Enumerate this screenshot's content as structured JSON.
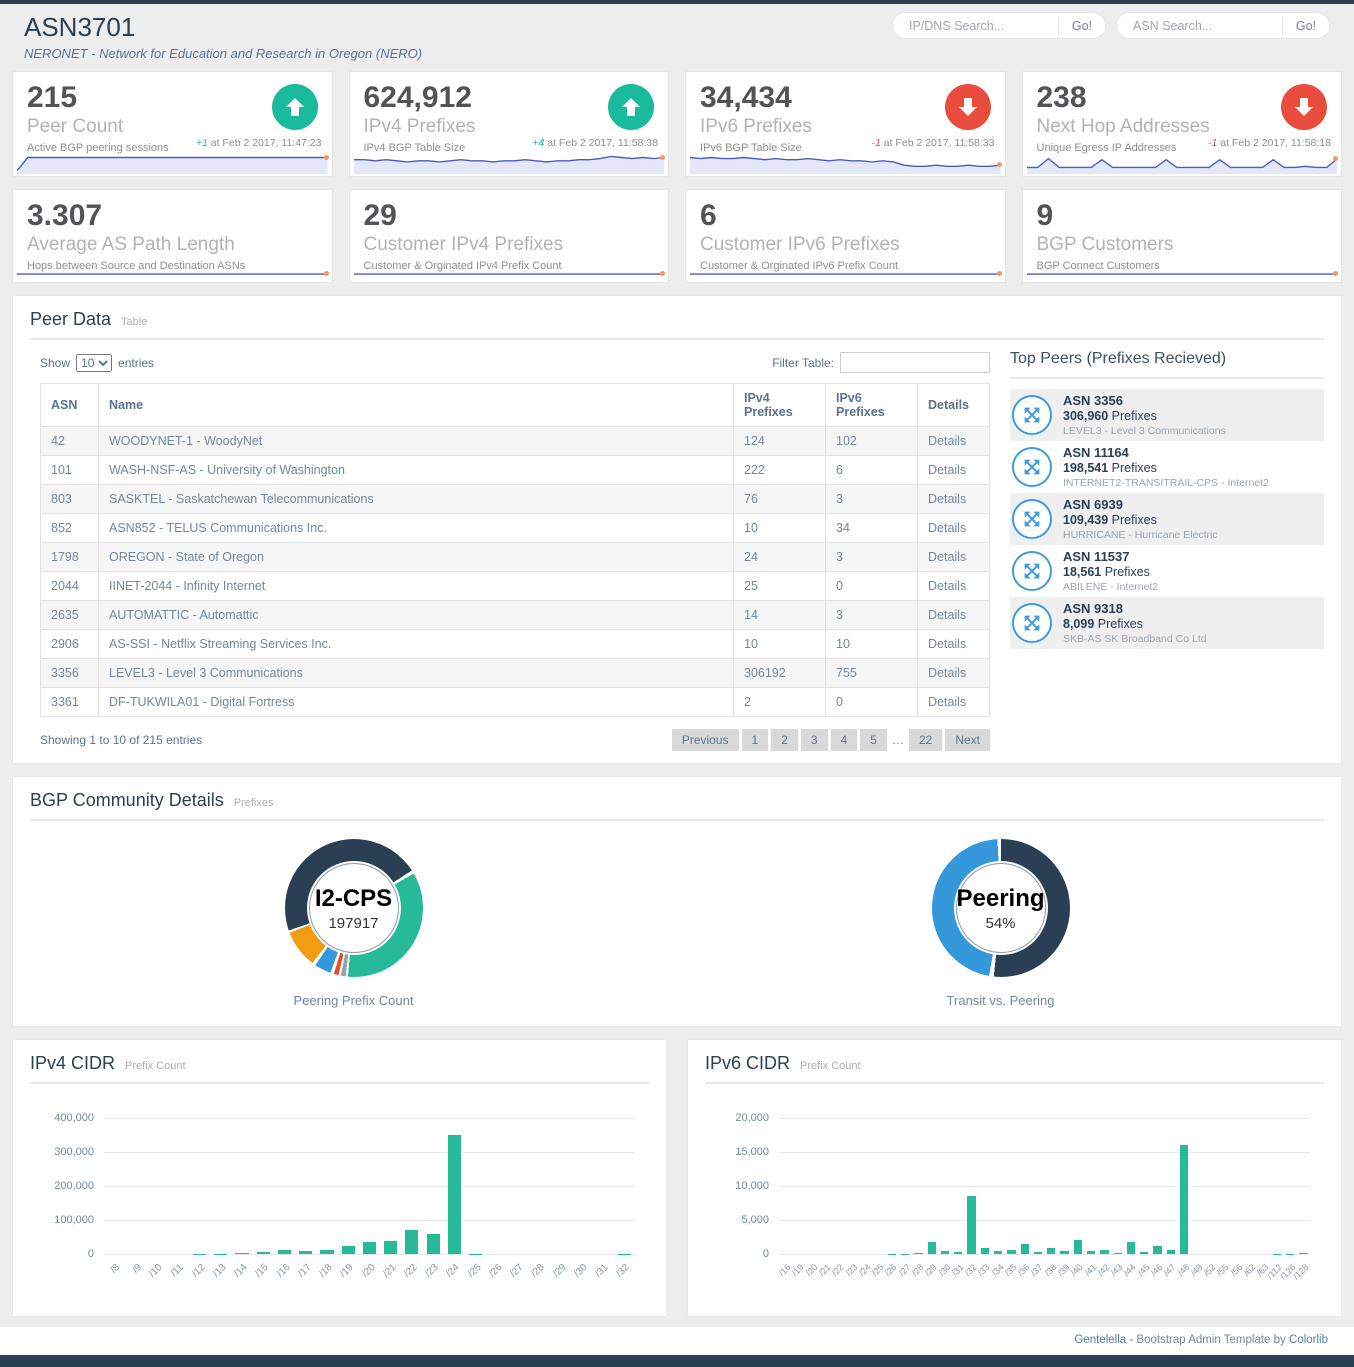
{
  "header": {
    "title": "ASN3701",
    "subtitle": "NERONET - Network for Education and Research in Oregon (NERO)",
    "ip_dns_search": {
      "placeholder": "IP/DNS Search...",
      "button": "Go!"
    },
    "asn_search": {
      "placeholder": "ASN Search...",
      "button": "Go!"
    }
  },
  "colors": {
    "navy": "#2A3F54",
    "accent_green": "#1ABB9C",
    "accent_red": "#E74C3C",
    "bar_green": "#26B99A",
    "icon_blue": "#3E9BDC",
    "spark_line": "#4A5BC5",
    "spark_fill": "#E3E7F7",
    "spark_dot": "#F39B5B"
  },
  "tiles_row1": [
    {
      "value": "215",
      "title": "Peer Count",
      "desc": "Active BGP peering sessions",
      "dir": "up",
      "delta": "+1",
      "when": "at Feb 2 2017, 11:47:23",
      "spark": [
        3,
        15,
        15,
        15,
        15,
        15,
        15,
        15,
        15,
        15,
        15,
        15,
        15,
        15,
        15,
        15,
        15,
        15,
        15,
        15,
        15,
        15,
        15,
        15,
        15,
        15,
        15,
        15,
        15,
        15
      ]
    },
    {
      "value": "624,912",
      "title": "IPv4 Prefixes",
      "desc": "IPv4 BGP Table Size",
      "dir": "up",
      "delta": "+4",
      "when": "at Feb 2 2017, 11:58:38",
      "spark": [
        13,
        13,
        12,
        13,
        12,
        11,
        12,
        12,
        11,
        12,
        13,
        12,
        12,
        11,
        12,
        12,
        13,
        12,
        11,
        12,
        12,
        13,
        13,
        14,
        16,
        15,
        14,
        15,
        14,
        15
      ]
    },
    {
      "value": "34,434",
      "title": "IPv6 Prefixes",
      "desc": "IPv6 BGP Table Size",
      "dir": "down",
      "delta": "-1",
      "when": "at Feb 2 2017, 11:58:33",
      "spark": [
        15,
        14,
        15,
        14,
        14,
        15,
        14,
        13,
        14,
        13,
        13,
        14,
        13,
        12,
        13,
        12,
        12,
        11,
        12,
        11,
        8,
        7,
        7,
        8,
        7,
        7,
        8,
        7,
        7,
        8
      ]
    },
    {
      "value": "238",
      "title": "Next Hop Addresses",
      "desc": "Unique Egress IP Addresses",
      "dir": "down",
      "delta": "-1",
      "when": "at Feb 2 2017, 11:58:18",
      "spark": [
        6,
        6,
        14,
        6,
        6,
        6,
        6,
        13,
        6,
        6,
        6,
        6,
        6,
        13,
        6,
        6,
        6,
        6,
        13,
        6,
        6,
        6,
        6,
        13,
        6,
        6,
        7,
        6,
        6,
        14
      ]
    }
  ],
  "tiles_row2": [
    {
      "value": "3.307",
      "title": "Average AS Path Length",
      "desc": "Hops between Source and Destination ASNs",
      "spark": [
        6,
        6,
        6,
        6,
        6,
        6,
        6,
        6,
        6,
        6,
        6,
        6,
        6,
        6,
        6,
        6,
        6,
        6,
        6,
        6,
        6,
        6,
        6,
        6,
        6,
        6,
        6,
        6,
        6,
        6
      ]
    },
    {
      "value": "29",
      "title": "Customer IPv4 Prefixes",
      "desc": "Customer & Orginated IPv4 Prefix Count",
      "spark": [
        6,
        6,
        6,
        6,
        6,
        6,
        6,
        6,
        6,
        6,
        6,
        6,
        6,
        6,
        6,
        6,
        6,
        6,
        6,
        6,
        6,
        6,
        6,
        6,
        6,
        6,
        6,
        6,
        6,
        6
      ]
    },
    {
      "value": "6",
      "title": "Customer IPv6 Prefixes",
      "desc": "Customer & Orginated IPv6 Prefix Count",
      "spark": [
        6,
        6,
        6,
        6,
        6,
        6,
        6,
        6,
        6,
        6,
        6,
        6,
        6,
        6,
        6,
        6,
        6,
        6,
        6,
        6,
        6,
        6,
        6,
        6,
        6,
        6,
        6,
        6,
        6,
        6
      ]
    },
    {
      "value": "9",
      "title": "BGP Customers",
      "desc": "BGP Connect Customers",
      "spark": [
        6,
        6,
        6,
        6,
        6,
        6,
        6,
        6,
        6,
        6,
        6,
        6,
        6,
        6,
        6,
        6,
        6,
        6,
        6,
        6,
        6,
        6,
        6,
        6,
        6,
        6,
        6,
        6,
        6,
        6
      ]
    }
  ],
  "peer_table": {
    "panel_title": "Peer Data",
    "panel_subtitle": "Table",
    "show_label": "Show",
    "entries_label": "entries",
    "page_size": "10",
    "filter_label": "Filter Table:",
    "columns": [
      "ASN",
      "Name",
      "IPv4 Prefixes",
      "IPv6 Prefixes",
      "Details"
    ],
    "rows": [
      [
        "42",
        "WOODYNET-1 - WoodyNet",
        "124",
        "102",
        "Details"
      ],
      [
        "101",
        "WASH-NSF-AS - University of Washington",
        "222",
        "6",
        "Details"
      ],
      [
        "803",
        "SASKTEL - Saskatchewan Telecommunications",
        "76",
        "3",
        "Details"
      ],
      [
        "852",
        "ASN852 - TELUS Communications Inc.",
        "10",
        "34",
        "Details"
      ],
      [
        "1798",
        "OREGON - State of Oregon",
        "24",
        "3",
        "Details"
      ],
      [
        "2044",
        "IINET-2044 - Infinity Internet",
        "25",
        "0",
        "Details"
      ],
      [
        "2635",
        "AUTOMATTIC - Automattic",
        "14",
        "3",
        "Details"
      ],
      [
        "2906",
        "AS-SSI - Netflix Streaming Services Inc.",
        "10",
        "10",
        "Details"
      ],
      [
        "3356",
        "LEVEL3 - Level 3 Communications",
        "306192",
        "755",
        "Details"
      ],
      [
        "3361",
        "DF-TUKWILA01 - Digital Fortress",
        "2",
        "0",
        "Details"
      ]
    ],
    "summary": "Showing 1 to 10 of 215 entries",
    "pagination": [
      "Previous",
      "1",
      "2",
      "3",
      "4",
      "5",
      "…",
      "22",
      "Next"
    ]
  },
  "top_peers": {
    "title": "Top Peers (Prefixes Recieved)",
    "prefixes_label": "Prefixes",
    "items": [
      {
        "asn": "ASN 3356",
        "prefixes": "306,960",
        "name": "LEVEL3 - Level 3 Communications"
      },
      {
        "asn": "ASN 11164",
        "prefixes": "198,541",
        "name": "INTERNET2-TRANSITRAIL-CPS - Internet2"
      },
      {
        "asn": "ASN 6939",
        "prefixes": "109,439",
        "name": "HURRICANE - Hurricane Electric"
      },
      {
        "asn": "ASN 11537",
        "prefixes": "18,561",
        "name": "ABILENE - Internet2"
      },
      {
        "asn": "ASN 9318",
        "prefixes": "8,099",
        "name": "SKB-AS SK Broadband Co Ltd"
      }
    ]
  },
  "bgp_community": {
    "panel_title": "BGP Community Details",
    "panel_subtitle": "Prefixes"
  },
  "chart_data": [
    {
      "type": "pie",
      "variant": "donut",
      "center_label": "I2-CPS",
      "center_value": "197917",
      "caption": "Peering Prefix Count",
      "slices": [
        {
          "color": "#2A3F54",
          "from": 0,
          "to": 57
        },
        {
          "color": "#26B99A",
          "from": 60,
          "to": 185
        },
        {
          "color": "#95A5A6",
          "from": 187,
          "to": 191
        },
        {
          "color": "#E74C3C",
          "from": 193,
          "to": 197
        },
        {
          "color": "#3498DB",
          "from": 200,
          "to": 214
        },
        {
          "color": "#F39C12",
          "from": 217,
          "to": 249
        },
        {
          "color": "#2A3F54",
          "from": 251,
          "to": 360
        }
      ]
    },
    {
      "type": "pie",
      "variant": "donut",
      "center_label": "Peering",
      "center_value": "54%",
      "caption": "Transit vs. Peering",
      "slices": [
        {
          "color": "#2A3F54",
          "from": 0,
          "to": 186
        },
        {
          "color": "#3498DB",
          "from": 190,
          "to": 357
        }
      ]
    },
    {
      "type": "bar",
      "title": "IPv4 CIDR",
      "subtitle": "Prefix Count",
      "bar_color": "#26B99A",
      "categories": [
        "/8",
        "/9",
        "/10",
        "/11",
        "/12",
        "/13",
        "/14",
        "/15",
        "/16",
        "/17",
        "/18",
        "/19",
        "/20",
        "/21",
        "/22",
        "/23",
        "/24",
        "/25",
        "/26",
        "/27",
        "/28",
        "/29",
        "/30",
        "/31",
        "/32"
      ],
      "values": [
        0,
        0,
        50,
        100,
        500,
        1500,
        3000,
        5000,
        13000,
        8000,
        12500,
        24000,
        35000,
        38000,
        70000,
        60000,
        350000,
        500,
        200,
        150,
        150,
        200,
        100,
        50,
        400
      ],
      "yticks": [
        0,
        100000,
        200000,
        300000,
        400000
      ],
      "ylim": [
        0,
        400000
      ]
    },
    {
      "type": "bar",
      "title": "IPv6 CIDR",
      "subtitle": "Prefix Count",
      "bar_color": "#26B99A",
      "categories": [
        "/16",
        "/19",
        "/20",
        "/21",
        "/22",
        "/23",
        "/24",
        "/25",
        "/26",
        "/27",
        "/28",
        "/29",
        "/30",
        "/31",
        "/32",
        "/33",
        "/34",
        "/35",
        "/36",
        "/37",
        "/38",
        "/39",
        "/40",
        "/41",
        "/42",
        "/43",
        "/44",
        "/45",
        "/46",
        "/47",
        "/48",
        "/49",
        "/52",
        "/55",
        "/56",
        "/62",
        "/63",
        "/112",
        "/126",
        "/128"
      ],
      "values": [
        0,
        0,
        0,
        0,
        0,
        0,
        0,
        0,
        30,
        30,
        100,
        1800,
        420,
        260,
        8600,
        900,
        420,
        630,
        1500,
        260,
        950,
        370,
        2000,
        420,
        520,
        210,
        1800,
        320,
        1200,
        580,
        16000,
        0,
        0,
        0,
        0,
        0,
        0,
        60,
        30,
        80
      ],
      "yticks": [
        0,
        5000,
        10000,
        15000,
        20000
      ],
      "ylim": [
        0,
        20000
      ]
    }
  ],
  "footer": {
    "link1": "Gentelella",
    "middle": " - Bootstrap Admin Template by ",
    "link2": "Colorlib"
  }
}
